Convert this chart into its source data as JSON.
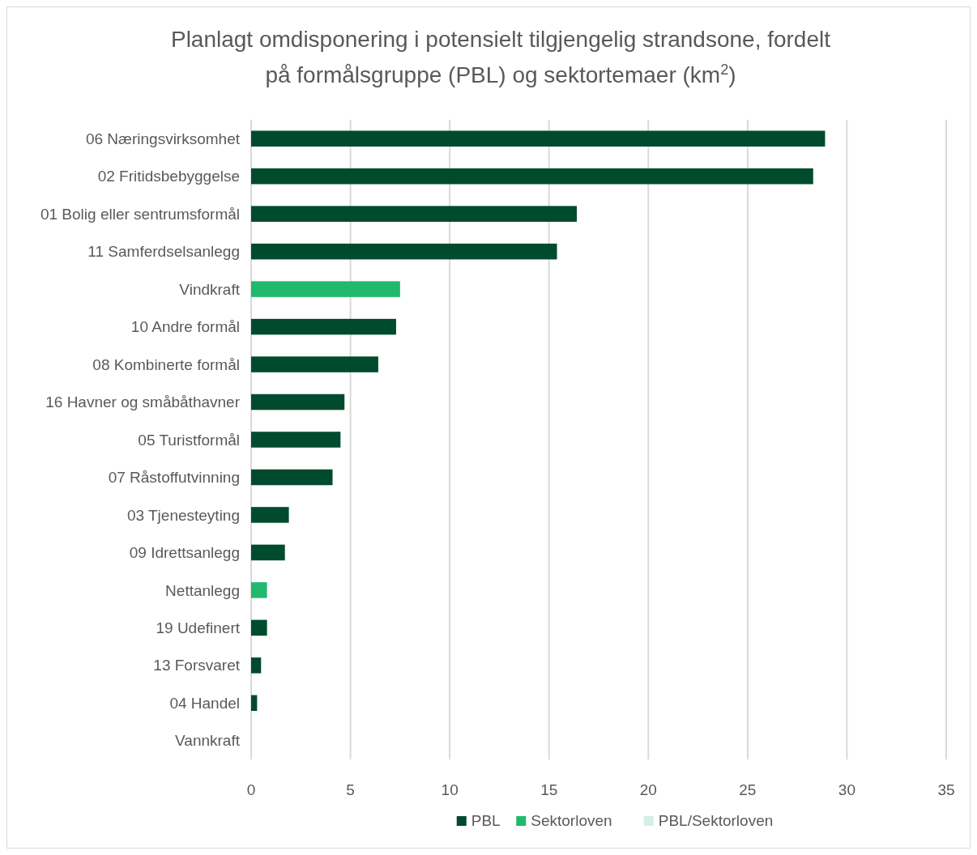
{
  "chart_data": {
    "type": "bar",
    "orientation": "horizontal",
    "stacked": true,
    "title": "Planlagt omdisponering i potensielt tilgjengelig strandsone, fordelt på formålsgruppe (PBL) og sektortemaer (km$^{2}$)",
    "categories": [
      "06 Næringsvirksomhet",
      "02 Fritidsbebyggelse",
      "01 Bolig eller sentrumsformål",
      "11 Samferdselsanlegg",
      "Vindkraft",
      "10 Andre formål",
      "08 Kombinerte formål",
      "16 Havner og småbåthavner",
      "05 Turistformål",
      "07 Råstoffutvinning",
      "03 Tjenesteyting",
      "09 Idrettsanlegg",
      "Nettanlegg",
      "19 Udefinert",
      "13 Forsvaret",
      "04 Handel",
      "Vannkraft"
    ],
    "series": [
      {
        "name": "PBL",
        "color": "#004b2d",
        "values": [
          28.9,
          28.3,
          16.4,
          15.4,
          null,
          7.3,
          6.4,
          4.7,
          4.5,
          4.1,
          1.9,
          1.7,
          null,
          0.8,
          0.5,
          0.3,
          null
        ]
      },
      {
        "name": "Sektorloven",
        "color": "#22b86e",
        "values": [
          null,
          null,
          null,
          null,
          7.5,
          null,
          null,
          null,
          null,
          null,
          null,
          null,
          0.8,
          null,
          null,
          null,
          null
        ]
      },
      {
        "name": "PBL/Sektorloven",
        "color": "#d6efe5",
        "values": [
          null,
          null,
          null,
          null,
          null,
          null,
          null,
          null,
          null,
          null,
          null,
          null,
          null,
          null,
          null,
          null,
          0
        ]
      }
    ],
    "xlim": [
      0,
      35
    ],
    "xticks": [
      0,
      5,
      10,
      15,
      20,
      25,
      30,
      35
    ],
    "grid": "x",
    "legend": "bottom"
  }
}
